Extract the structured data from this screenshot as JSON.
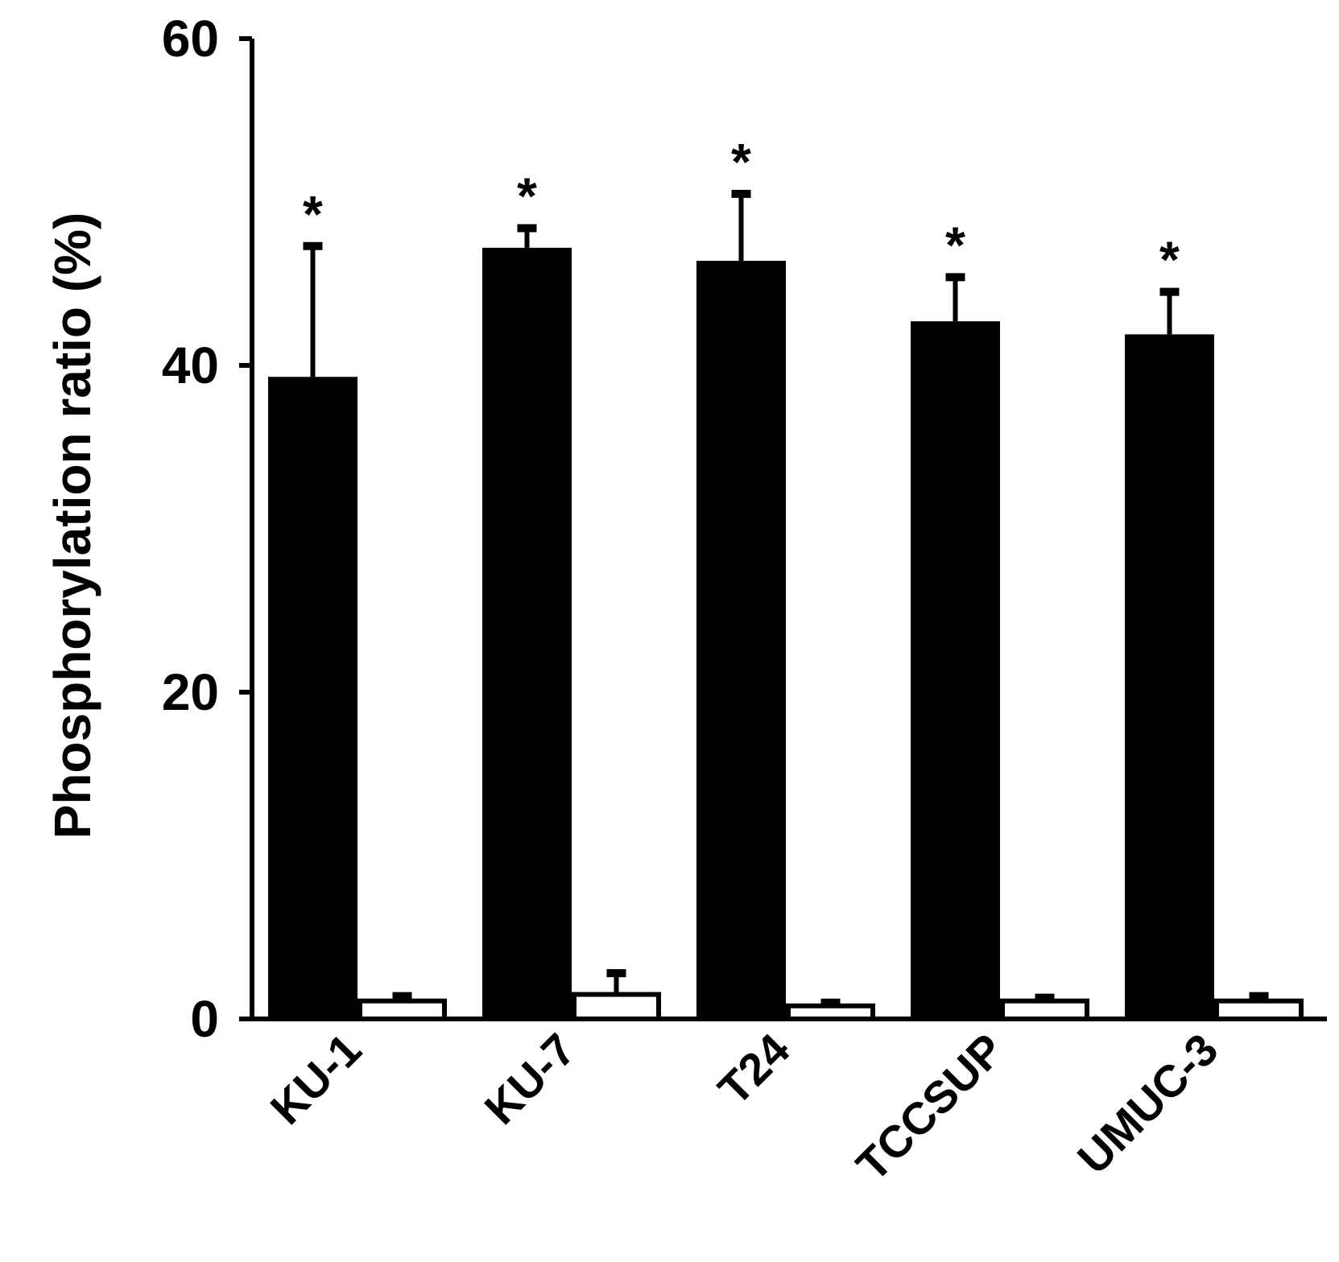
{
  "chart_data": {
    "type": "bar",
    "categories": [
      "KU-1",
      "KU-7",
      "T24",
      "TCCSUP",
      "UMUC-3"
    ],
    "series": [
      {
        "values": [
          39.3,
          47.2,
          46.4,
          42.7,
          41.9
        ],
        "errors": [
          8.0,
          1.2,
          4.1,
          2.7,
          2.6
        ],
        "fill": "#000000"
      },
      {
        "values": [
          1.1,
          1.5,
          0.8,
          1.1,
          1.1
        ],
        "errors": [
          0.3,
          1.3,
          0.2,
          0.2,
          0.3
        ],
        "fill": "#ffffff"
      }
    ],
    "significance": [
      "*",
      "*",
      "*",
      "*",
      "*"
    ],
    "ylabel": "Phosphorylation ratio (%)",
    "xlabel": "",
    "ylim": [
      0,
      60
    ],
    "yticks": [
      "0",
      "20",
      "40",
      "60"
    ],
    "grid": false,
    "legend": "none"
  }
}
